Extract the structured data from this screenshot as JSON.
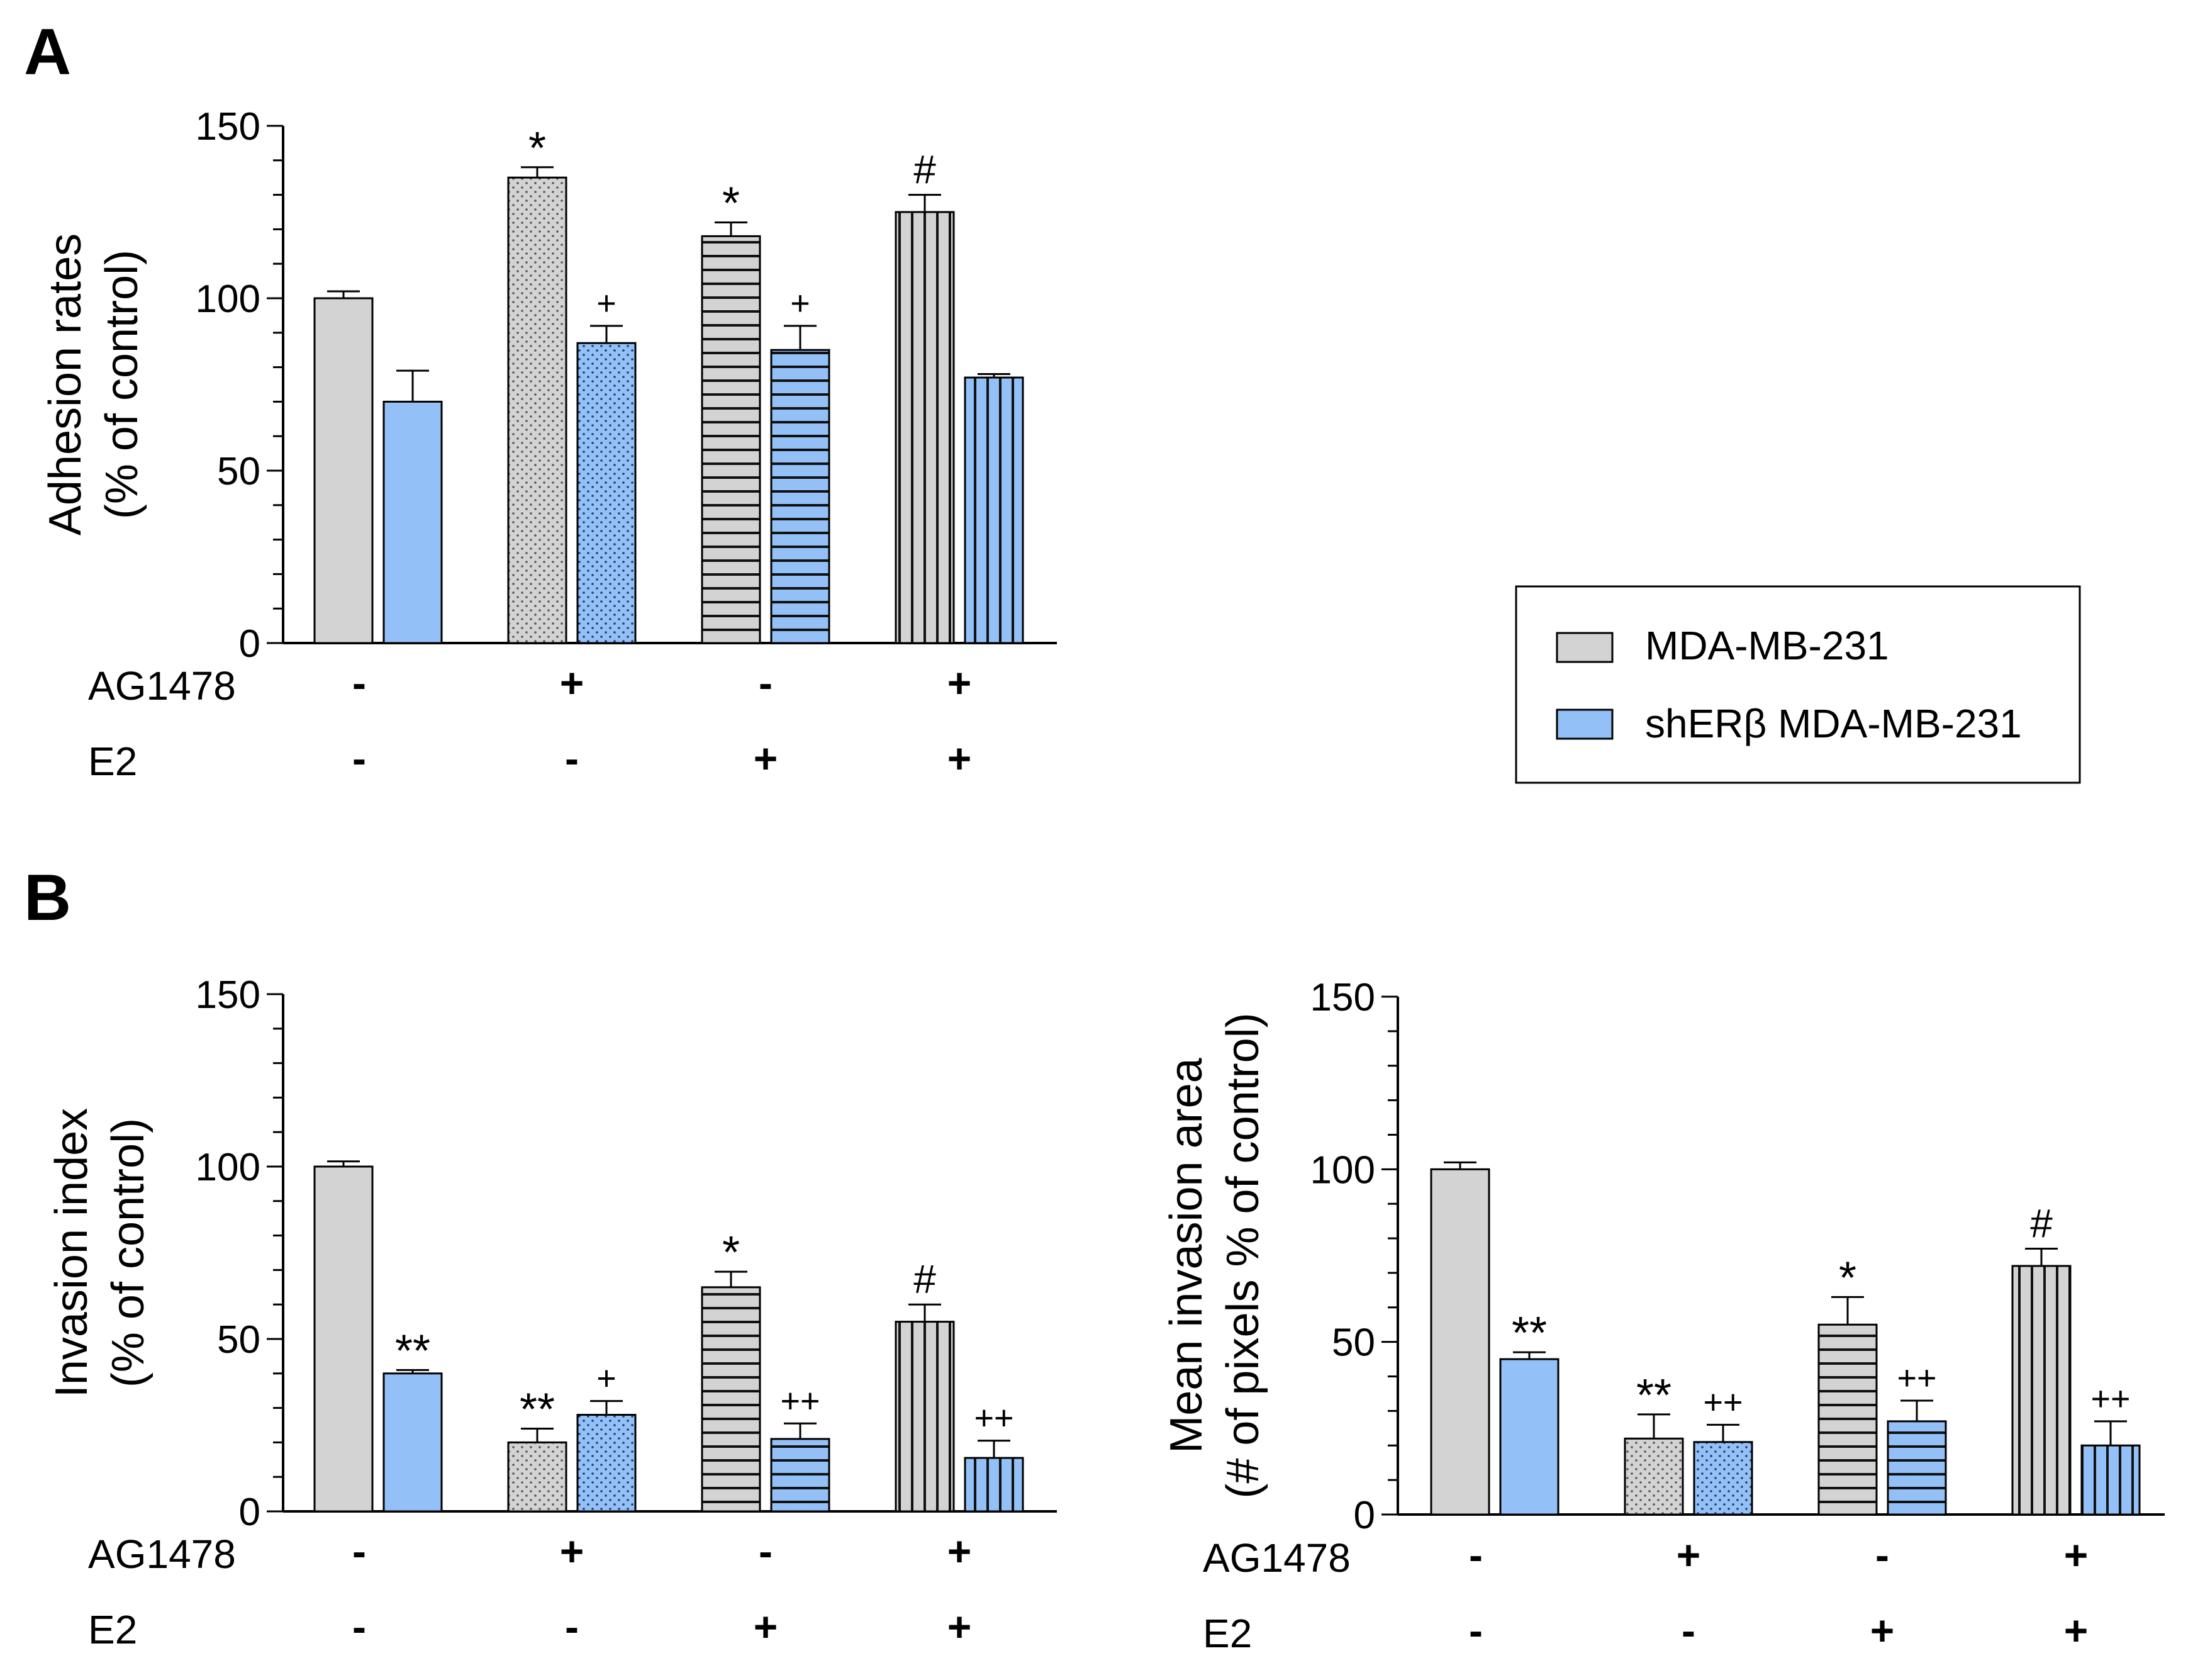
{
  "figure": {
    "panel_labels": [
      "A",
      "B"
    ],
    "legend": [
      {
        "name": "MDA-MB-231",
        "color": "#d3d3d3"
      },
      {
        "name": "shERβ MDA-MB-231",
        "color": "#93c1f7"
      }
    ],
    "condition_rows": [
      {
        "label": "AG1478",
        "signs": [
          "-",
          "+",
          "-",
          "+"
        ]
      },
      {
        "label": "E2",
        "signs": [
          "-",
          "-",
          "+",
          "+"
        ]
      }
    ],
    "group_patterns": [
      "solid",
      "dots",
      "horizontal-lines",
      "vertical-lines"
    ]
  },
  "chart_data": [
    {
      "type": "bar",
      "panel": "A",
      "ylabel": [
        "Adhesion rates",
        "(% of control)"
      ],
      "ylim": [
        0,
        150
      ],
      "yticks": [
        0,
        50,
        100,
        150
      ],
      "categories": [
        "AG1478- E2-",
        "AG1478+ E2-",
        "AG1478- E2+",
        "AG1478+ E2+"
      ],
      "series": [
        {
          "name": "MDA-MB-231",
          "values": [
            100,
            135,
            118,
            125
          ],
          "errors": [
            2,
            3,
            4,
            5
          ],
          "annotations": [
            "",
            "*",
            "*",
            "#"
          ]
        },
        {
          "name": "shERβ MDA-MB-231",
          "values": [
            70,
            87,
            85,
            77
          ],
          "errors": [
            9,
            5,
            7,
            1
          ],
          "annotations": [
            "",
            "+",
            "+",
            ""
          ]
        }
      ]
    },
    {
      "type": "bar",
      "panel": "B-left",
      "ylabel": [
        "Invasion index",
        "(% of control)"
      ],
      "ylim": [
        0,
        150
      ],
      "yticks": [
        0,
        50,
        100,
        150
      ],
      "categories": [
        "AG1478- E2-",
        "AG1478+ E2-",
        "AG1478- E2+",
        "AG1478+ E2+"
      ],
      "series": [
        {
          "name": "MDA-MB-231",
          "values": [
            100,
            20,
            65,
            55
          ],
          "errors": [
            1.5,
            4,
            4.5,
            5
          ],
          "annotations": [
            "",
            "**",
            "*",
            "#"
          ]
        },
        {
          "name": "shERβ MDA-MB-231",
          "values": [
            40,
            28,
            21,
            15.5
          ],
          "errors": [
            1,
            4,
            4.5,
            5
          ],
          "annotations": [
            "**",
            "+",
            "++",
            "++"
          ]
        }
      ]
    },
    {
      "type": "bar",
      "panel": "B-right",
      "ylabel": [
        "Mean invasion area",
        "(# of pixels % of control)"
      ],
      "ylim": [
        0,
        150
      ],
      "yticks": [
        0,
        50,
        100,
        150
      ],
      "categories": [
        "AG1478- E2-",
        "AG1478+ E2-",
        "AG1478- E2+",
        "AG1478+ E2+"
      ],
      "series": [
        {
          "name": "MDA-MB-231",
          "values": [
            100,
            22,
            55,
            72
          ],
          "errors": [
            2,
            7,
            8,
            5
          ],
          "annotations": [
            "",
            "**",
            "*",
            "#"
          ]
        },
        {
          "name": "shERβ MDA-MB-231",
          "values": [
            45,
            21,
            27,
            20
          ],
          "errors": [
            2,
            5,
            6,
            7
          ],
          "annotations": [
            "**",
            "++",
            "++",
            "++"
          ]
        }
      ]
    }
  ]
}
